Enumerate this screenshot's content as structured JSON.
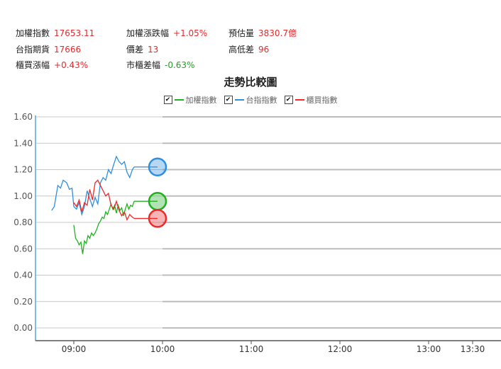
{
  "stats": [
    {
      "label": "加權指數",
      "value": "17653.11",
      "tone": "up"
    },
    {
      "label": "加權漲跌幅",
      "value": "+1.05%",
      "tone": "up"
    },
    {
      "label": "預估量",
      "value": "3830.7億",
      "tone": "up"
    },
    {
      "label": "台指期貨",
      "value": "17666",
      "tone": "up"
    },
    {
      "label": "價差",
      "value": "13",
      "tone": "up"
    },
    {
      "label": "高低差",
      "value": "96",
      "tone": "up"
    },
    {
      "label": "櫃買漲幅",
      "value": "+0.43%",
      "tone": "up"
    },
    {
      "label": "市櫃差幅",
      "value": "-0.63%",
      "tone": "down"
    }
  ],
  "chart_data": {
    "type": "line",
    "title": "走勢比較圖",
    "ylim": [
      0.0,
      1.6
    ],
    "yticks": [
      "0.00",
      "0.20",
      "0.40",
      "0.60",
      "0.80",
      "1.00",
      "1.20",
      "1.40",
      "1.60"
    ],
    "xticks": [
      "09:00",
      "10:00",
      "11:00",
      "12:00",
      "13:00",
      "13:30"
    ],
    "legend_position": "top-center",
    "series": [
      {
        "name": "加權指數",
        "color": "#22b022",
        "current": 0.96,
        "points": [
          [
            0.0,
            0.78
          ],
          [
            0.02,
            0.68
          ],
          [
            0.04,
            0.66
          ],
          [
            0.06,
            0.63
          ],
          [
            0.08,
            0.65
          ],
          [
            0.1,
            0.56
          ],
          [
            0.12,
            0.66
          ],
          [
            0.14,
            0.64
          ],
          [
            0.16,
            0.7
          ],
          [
            0.18,
            0.68
          ],
          [
            0.2,
            0.72
          ],
          [
            0.22,
            0.7
          ],
          [
            0.24,
            0.72
          ],
          [
            0.26,
            0.75
          ],
          [
            0.28,
            0.79
          ],
          [
            0.3,
            0.81
          ],
          [
            0.32,
            0.84
          ],
          [
            0.34,
            0.83
          ],
          [
            0.36,
            0.88
          ],
          [
            0.38,
            0.86
          ],
          [
            0.4,
            0.9
          ],
          [
            0.42,
            0.94
          ],
          [
            0.44,
            0.9
          ],
          [
            0.46,
            0.93
          ],
          [
            0.48,
            0.87
          ],
          [
            0.5,
            0.93
          ],
          [
            0.52,
            0.89
          ],
          [
            0.54,
            0.91
          ],
          [
            0.56,
            0.85
          ],
          [
            0.58,
            0.9
          ],
          [
            0.6,
            0.94
          ],
          [
            0.62,
            0.9
          ],
          [
            0.64,
            0.93
          ],
          [
            0.66,
            0.92
          ],
          [
            0.68,
            0.96
          ]
        ]
      },
      {
        "name": "台指指數",
        "color": "#2e8fe0",
        "current": 1.22,
        "points": [
          [
            -0.25,
            0.89
          ],
          [
            -0.22,
            0.92
          ],
          [
            -0.18,
            1.08
          ],
          [
            -0.15,
            1.06
          ],
          [
            -0.12,
            1.12
          ],
          [
            -0.08,
            1.1
          ],
          [
            -0.05,
            1.05
          ],
          [
            -0.02,
            1.06
          ],
          [
            0.0,
            0.92
          ],
          [
            0.03,
            0.9
          ],
          [
            0.06,
            0.95
          ],
          [
            0.09,
            0.86
          ],
          [
            0.12,
            0.92
          ],
          [
            0.15,
            1.04
          ],
          [
            0.18,
            0.98
          ],
          [
            0.21,
            0.92
          ],
          [
            0.24,
            0.99
          ],
          [
            0.27,
            0.94
          ],
          [
            0.3,
            1.1
          ],
          [
            0.33,
            1.14
          ],
          [
            0.36,
            1.12
          ],
          [
            0.39,
            1.2
          ],
          [
            0.42,
            1.17
          ],
          [
            0.45,
            1.24
          ],
          [
            0.48,
            1.3
          ],
          [
            0.51,
            1.26
          ],
          [
            0.54,
            1.24
          ],
          [
            0.57,
            1.26
          ],
          [
            0.6,
            1.18
          ],
          [
            0.63,
            1.14
          ],
          [
            0.66,
            1.2
          ],
          [
            0.68,
            1.22
          ]
        ]
      },
      {
        "name": "櫃買指數",
        "color": "#ee2a2a",
        "current": 0.83,
        "points": [
          [
            0.0,
            0.95
          ],
          [
            0.03,
            0.92
          ],
          [
            0.06,
            0.97
          ],
          [
            0.09,
            0.88
          ],
          [
            0.12,
            0.95
          ],
          [
            0.15,
            0.93
          ],
          [
            0.18,
            1.05
          ],
          [
            0.21,
            0.97
          ],
          [
            0.24,
            1.1
          ],
          [
            0.27,
            1.12
          ],
          [
            0.3,
            1.08
          ],
          [
            0.33,
            1.04
          ],
          [
            0.36,
            1.0
          ],
          [
            0.39,
            1.02
          ],
          [
            0.42,
            0.93
          ],
          [
            0.45,
            0.9
          ],
          [
            0.48,
            0.96
          ],
          [
            0.51,
            0.89
          ],
          [
            0.54,
            0.85
          ],
          [
            0.57,
            0.88
          ],
          [
            0.6,
            0.82
          ],
          [
            0.63,
            0.86
          ],
          [
            0.66,
            0.84
          ],
          [
            0.68,
            0.83
          ]
        ]
      }
    ]
  }
}
